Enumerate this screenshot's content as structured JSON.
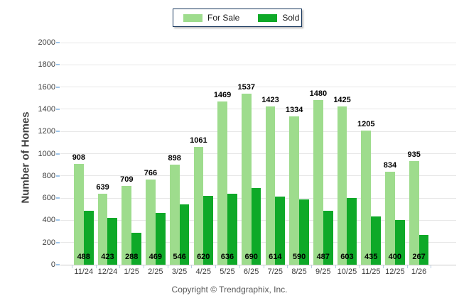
{
  "chart_data": {
    "type": "bar",
    "categories": [
      "11/24",
      "12/24",
      "1/25",
      "2/25",
      "3/25",
      "4/25",
      "5/25",
      "6/25",
      "7/25",
      "8/25",
      "9/25",
      "10/25",
      "11/25",
      "12/25",
      "1/26"
    ],
    "series": [
      {
        "name": "For Sale",
        "color": "#9EDC8D",
        "values": [
          908,
          639,
          709,
          766,
          898,
          1061,
          1469,
          1537,
          1423,
          1334,
          1480,
          1425,
          1205,
          834,
          935
        ]
      },
      {
        "name": "Sold",
        "color": "#0EA928",
        "values": [
          488,
          423,
          288,
          469,
          546,
          620,
          636,
          690,
          614,
          590,
          487,
          603,
          435,
          400,
          267
        ]
      }
    ],
    "ylabel": "Number of Homes",
    "xlabel": "",
    "ylim": [
      0,
      2000
    ],
    "ytick_step": 200,
    "grid": true,
    "legend_position": "top-center",
    "value_labels": {
      "for_sale_position": "above-bar",
      "sold_position": "bottom-of-bars"
    }
  },
  "colors": {
    "grid": "#E7E7E7",
    "axis_line": "#C9C9C9",
    "y_tick": "#9DC3E6",
    "x_tick": "#B9CDE3",
    "tick_text": "#3C3C3C",
    "value_text": "#000000",
    "legend_border": "#17375D"
  },
  "footer": {
    "copyright": "Copyright © Trendgraphix, Inc."
  }
}
